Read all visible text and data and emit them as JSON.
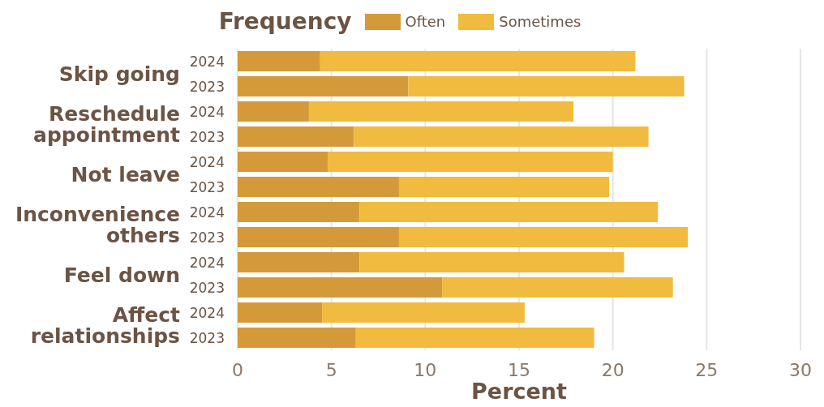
{
  "chart_data": {
    "type": "bar",
    "orientation": "horizontal",
    "stacked": true,
    "categories": [
      "2024",
      "2023",
      "2024",
      "2023",
      "2024",
      "2023",
      "2024",
      "2023",
      "2024",
      "2023",
      "2024",
      "2023"
    ],
    "annotations": [
      "Skip going",
      "Reschedule appointment",
      "Not leave",
      "Inconvenience others",
      "Feel down",
      "Affect relationships"
    ],
    "series": [
      {
        "name": "Often",
        "color": "#d49a3a",
        "values": [
          4.4,
          9.1,
          3.8,
          6.2,
          4.8,
          8.6,
          6.5,
          8.6,
          6.5,
          10.9,
          4.5,
          6.3
        ]
      },
      {
        "name": "Sometimes",
        "color": "#f0bb3e",
        "values": [
          16.8,
          14.7,
          14.1,
          15.7,
          15.2,
          11.2,
          15.9,
          15.4,
          14.1,
          12.3,
          10.8,
          12.7
        ]
      }
    ],
    "xlabel": "Percent",
    "legend_title": "Frequency",
    "legend": "top",
    "xlim": [
      0,
      30
    ],
    "xticks": [
      0,
      5,
      10,
      15,
      20,
      25,
      30
    ],
    "grid": "x"
  }
}
